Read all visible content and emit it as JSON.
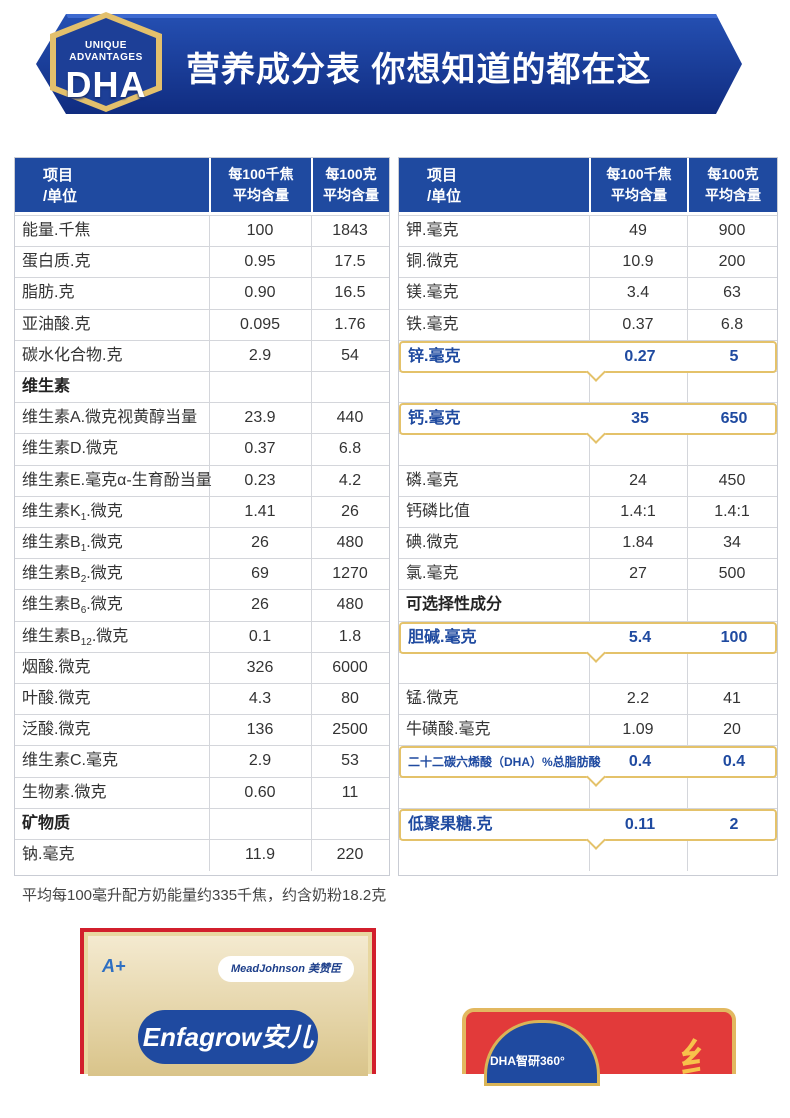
{
  "banner": {
    "badge_line1": "UNIQUE",
    "badge_line2": "ADVANTAGES",
    "badge_dha": "DHA",
    "title": "营养成分表  你想知道的都在这"
  },
  "left_table": {
    "header": {
      "item_1": "项目",
      "item_2": "/单位",
      "col1_1": "每100千焦",
      "col1_2": "平均含量",
      "col2_1": "每100克",
      "col2_2": "平均含量"
    },
    "rows": [
      {
        "name": "能量.千焦",
        "v1": "100",
        "v2": "1843"
      },
      {
        "name": "蛋白质.克",
        "v1": "0.95",
        "v2": "17.5"
      },
      {
        "name": "脂肪.克",
        "v1": "0.90",
        "v2": "16.5"
      },
      {
        "name": "亚油酸.克",
        "v1": "0.095",
        "v2": "1.76"
      },
      {
        "name": "碳水化合物.克",
        "v1": "2.9",
        "v2": "54"
      },
      {
        "name": "维生素",
        "v1": "",
        "v2": ""
      },
      {
        "name": "维生素A.微克视黄醇当量",
        "v1": "23.9",
        "v2": "440"
      },
      {
        "name": "维生素D.微克",
        "v1": "0.37",
        "v2": "6.8"
      },
      {
        "name": "维生素E.毫克α-生育酚当量",
        "v1": "0.23",
        "v2": "4.2"
      },
      {
        "name_pre": "维生素K",
        "name_sub": "1",
        "name_post": ".微克",
        "v1": "1.41",
        "v2": "26"
      },
      {
        "name_pre": "维生素B",
        "name_sub": "1",
        "name_post": ".微克",
        "v1": "26",
        "v2": "480"
      },
      {
        "name_pre": "维生素B",
        "name_sub": "2",
        "name_post": ".微克",
        "v1": "69",
        "v2": "1270"
      },
      {
        "name_pre": "维生素B",
        "name_sub": "6",
        "name_post": ".微克",
        "v1": "26",
        "v2": "480"
      },
      {
        "name_pre": "维生素B",
        "name_sub": "12",
        "name_post": ".微克",
        "v1": "0.1",
        "v2": "1.8"
      },
      {
        "name": "烟酸.微克",
        "v1": "326",
        "v2": "6000"
      },
      {
        "name": "叶酸.微克",
        "v1": "4.3",
        "v2": "80"
      },
      {
        "name": "泛酸.微克",
        "v1": "136",
        "v2": "2500"
      },
      {
        "name": "维生素C.毫克",
        "v1": "2.9",
        "v2": "53"
      },
      {
        "name": "生物素.微克",
        "v1": "0.60",
        "v2": "11"
      },
      {
        "name": "矿物质",
        "v1": "",
        "v2": ""
      },
      {
        "name": "钠.毫克",
        "v1": "11.9",
        "v2": "220"
      }
    ]
  },
  "right_table": {
    "header": {
      "item_1": "项目",
      "item_2": "/单位",
      "col1_1": "每100千焦",
      "col1_2": "平均含量",
      "col2_1": "每100克",
      "col2_2": "平均含量"
    },
    "rows": [
      {
        "name": "钾.毫克",
        "v1": "49",
        "v2": "900"
      },
      {
        "name": "铜.微克",
        "v1": "10.9",
        "v2": "200"
      },
      {
        "name": "镁.毫克",
        "v1": "3.4",
        "v2": "63"
      },
      {
        "name": "铁.毫克",
        "v1": "0.37",
        "v2": "6.8"
      },
      {
        "name": "锌.毫克",
        "v1": "0.27",
        "v2": "5"
      },
      {
        "name": "钙.毫克",
        "v1": "35",
        "v2": "650"
      },
      {
        "name": "磷.毫克",
        "v1": "24",
        "v2": "450"
      },
      {
        "name": "钙磷比值",
        "v1": "1.4:1",
        "v2": "1.4:1"
      },
      {
        "name": "碘.微克",
        "v1": "1.84",
        "v2": "34"
      },
      {
        "name": "氯.毫克",
        "v1": "27",
        "v2": "500"
      },
      {
        "name": "可选择性成分",
        "v1": "",
        "v2": ""
      },
      {
        "name": "胆碱.毫克",
        "v1": "5.4",
        "v2": "100"
      },
      {
        "name": "锰.微克",
        "v1": "2.2",
        "v2": "41"
      },
      {
        "name": "牛磺酸.毫克",
        "v1": "1.09",
        "v2": "20"
      },
      {
        "name": "二十二碳六烯酸（DHA）%总脂肪酸",
        "v1": "0.4",
        "v2": "0.4"
      },
      {
        "name": "低聚果糖.克",
        "v1": "0.11",
        "v2": "2"
      }
    ]
  },
  "note": "平均每100毫升配方奶能量约335千焦，约含奶粉18.2克",
  "product": {
    "aplus": "A+",
    "maker": "MeadJohnson 美赞臣",
    "brand": "Enfagrow安儿宝",
    "card_text": "DHA智研360°",
    "card_glyph": "纟"
  },
  "colors": {
    "header_blue": "#1f4aa0",
    "highlight_gold": "#e4c26a",
    "banner_blue": "#17338c"
  }
}
